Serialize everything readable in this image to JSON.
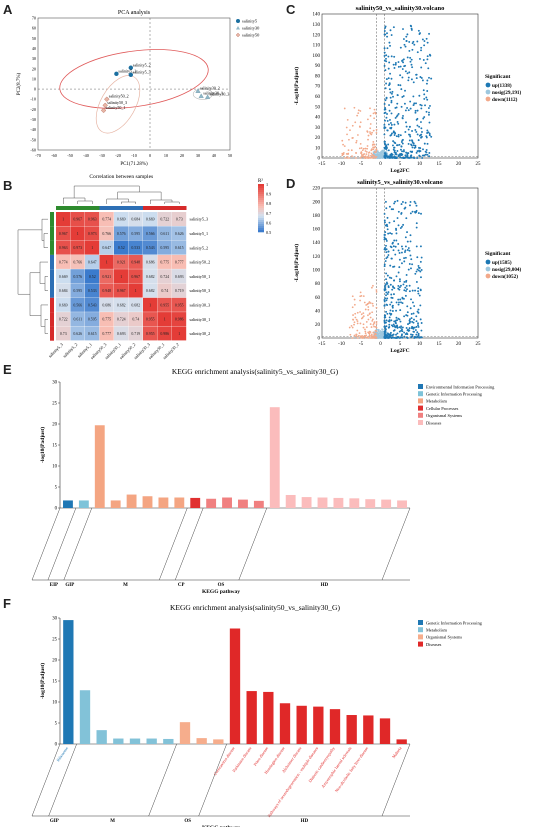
{
  "panel_labels": {
    "A": "A",
    "B": "B",
    "C": "C",
    "D": "D",
    "E": "E",
    "F": "F"
  },
  "colors": {
    "s5": "#1b6fa0",
    "s30": "#8fb7c7",
    "s50": "#e7b6a6",
    "vup": "#1d78b4",
    "vnosig": "#9dc7de",
    "vdown": "#f2a98a",
    "k_eip": "#1f77b4",
    "k_gip": "#7ec3d9",
    "k_met": "#f4a582",
    "k_cp": "#e03030",
    "k_os": "#f08080",
    "k_hd": "#fbbcbc",
    "f_gip": "#1f78b4",
    "f_met": "#82c2d8",
    "f_os": "#f6ad8c",
    "f_hd": "#e02828",
    "hm_hi": "#e84a40",
    "hm_lo": "#3a7fc8"
  },
  "chart_data": [
    {
      "id": "pca",
      "type": "scatter",
      "title": "PCA analysis",
      "xlabel": "PC1(71.28%)",
      "ylabel": "PC2(8.7%)",
      "xlim": [
        -70,
        50
      ],
      "ylim": [
        -60,
        70
      ],
      "xticks": [
        -70,
        -60,
        -50,
        -40,
        -30,
        -20,
        -10,
        0,
        10,
        20,
        30,
        40,
        50
      ],
      "yticks": [
        -60,
        -50,
        -40,
        -30,
        -20,
        -10,
        0,
        10,
        20,
        30,
        40,
        50,
        60,
        70
      ],
      "legend": [
        "salinity5",
        "salinity30",
        "salinity50"
      ],
      "points": [
        {
          "label": "salinity5_2",
          "x": -12,
          "y": 21,
          "group": "salinity5"
        },
        {
          "label": "salinity5_1",
          "x": -21,
          "y": 15,
          "group": "salinity5"
        },
        {
          "label": "salinity5_3",
          "x": -12,
          "y": 14,
          "group": "salinity5"
        },
        {
          "label": "salinity30_2",
          "x": 30,
          "y": -2,
          "group": "salinity30"
        },
        {
          "label": "salinity30_1",
          "x": 32,
          "y": -7,
          "group": "salinity30"
        },
        {
          "label": "salinity30_3",
          "x": 36,
          "y": -8,
          "group": "salinity30"
        },
        {
          "label": "salinity50_2",
          "x": -27,
          "y": -10,
          "group": "salinity50"
        },
        {
          "label": "salinity50_3",
          "x": -28,
          "y": -16,
          "group": "salinity50"
        },
        {
          "label": "salinity50_1",
          "x": -29,
          "y": -21,
          "group": "salinity50"
        }
      ]
    },
    {
      "id": "heatmap",
      "type": "heatmap",
      "title": "Correlation between samples",
      "legend_title": "R²",
      "legend_ticks": [
        "1",
        "0.9",
        "0.8",
        "0.7",
        "0.6",
        "0.5"
      ],
      "rows": [
        "salinity5_3",
        "salinity5_1",
        "salinity5_2",
        "salinity50_2",
        "salinity50_1",
        "salinity50_3",
        "salinity30_3",
        "salinity30_1",
        "salinity30_2"
      ],
      "cols": [
        "salinity5_3",
        "salinity5_2",
        "salinity5_1",
        "salinity50_3",
        "salinity50_1",
        "salinity50_2",
        "salinity30_3",
        "salinity30_1",
        "salinity30_2"
      ],
      "values": [
        [
          "1",
          "0.967",
          "0.963",
          "0.774",
          "0.669",
          "0.684",
          "0.669",
          "0.722",
          "0.73"
        ],
        [
          "0.967",
          "1",
          "0.973",
          "0.766",
          "0.576",
          "0.595",
          "0.566",
          "0.611",
          "0.626"
        ],
        [
          "0.963",
          "0.973",
          "1",
          "0.647",
          "0.52",
          "0.533",
          "0.543",
          "0.595",
          "0.615"
        ],
        [
          "0.774",
          "0.766",
          "0.647",
          "1",
          "0.921",
          "0.948",
          "0.686",
          "0.775",
          "0.777"
        ],
        [
          "0.669",
          "0.576",
          "0.52",
          "0.921",
          "1",
          "0.967",
          "0.682",
          "0.724",
          "0.693"
        ],
        [
          "0.684",
          "0.595",
          "0.533",
          "0.948",
          "0.967",
          "1",
          "0.682",
          "0.74",
          "0.719"
        ],
        [
          "0.669",
          "0.566",
          "0.543",
          "0.686",
          "0.682",
          "0.682",
          "1",
          "0.955",
          "0.955"
        ],
        [
          "0.722",
          "0.611",
          "0.595",
          "0.775",
          "0.724",
          "0.74",
          "0.955",
          "1",
          "0.986"
        ],
        [
          "0.73",
          "0.626",
          "0.615",
          "0.777",
          "0.693",
          "0.719",
          "0.955",
          "0.986",
          "1"
        ]
      ]
    },
    {
      "id": "volcanoC",
      "type": "scatter",
      "title": "salinity50_vs_salinity30.volcano",
      "xlabel": "Log2FC",
      "ylabel": "-Log10(Padjust)",
      "xlim": [
        -15,
        25
      ],
      "ylim": [
        0,
        140
      ],
      "xticks": [
        -15,
        -10,
        -5,
        0,
        5,
        10,
        15,
        20,
        25
      ],
      "yticks": [
        0,
        10,
        20,
        30,
        40,
        50,
        60,
        70,
        80,
        90,
        100,
        110,
        120,
        130,
        140
      ],
      "legend_title": "Significant",
      "legend": [
        "up(1338)",
        "nosig(29,191)",
        "down(1112)"
      ]
    },
    {
      "id": "volcanoD",
      "type": "scatter",
      "title": "salinity5_vs_salinity30.volcano",
      "xlabel": "Log2FC",
      "ylabel": "-Log10(Padjust)",
      "xlim": [
        -15,
        25
      ],
      "ylim": [
        0,
        220
      ],
      "xticks": [
        -15,
        -10,
        -5,
        0,
        5,
        10,
        15,
        20,
        25
      ],
      "yticks": [
        0,
        20,
        40,
        60,
        80,
        100,
        120,
        140,
        160,
        180,
        200,
        220
      ],
      "legend_title": "Significant",
      "legend": [
        "up(1585)",
        "nosig(29,004)",
        "down(1052)"
      ]
    },
    {
      "id": "keggE",
      "type": "bar",
      "title": "KEGG enrichment analysis(salinity5_vs_salinity30_G)",
      "xlabel": "KEGG pathway",
      "ylabel": "-log10(Padjust)",
      "ylim": [
        0,
        30
      ],
      "yticks": [
        0,
        5,
        10,
        15,
        20,
        25,
        30
      ],
      "legend": [
        "Environmental Information Processing",
        "Genetic Information Processing",
        "Metabolism",
        "Cellular Processes",
        "Organismal Systems",
        "Diseases"
      ],
      "groups": [
        "EIP",
        "GIP",
        "M",
        "CP",
        "OS",
        "HD"
      ],
      "values": [
        1.8,
        1.8,
        19.7,
        1.8,
        3.2,
        2.8,
        2.5,
        2.5,
        2.4,
        2.2,
        2.5,
        2.0,
        1.7,
        24.0,
        3.1,
        2.6,
        2.5,
        2.4,
        2.3,
        2.1,
        2.0,
        1.8
      ],
      "bar_groups": [
        "EIP",
        "GIP",
        "M",
        "M",
        "M",
        "M",
        "M",
        "M",
        "CP",
        "OS",
        "OS",
        "OS",
        "OS",
        "HD",
        "HD",
        "HD",
        "HD",
        "HD",
        "HD",
        "HD",
        "HD",
        "HD"
      ]
    },
    {
      "id": "keggF",
      "type": "bar",
      "title": "KEGG enrichment analysis(salinity50_vs_salinity30_G)",
      "xlabel": "KEGG pathway",
      "ylabel": "-log10(Padjust)",
      "ylim": [
        0,
        30
      ],
      "yticks": [
        0,
        5,
        10,
        15,
        20,
        25,
        30
      ],
      "legend": [
        "Genetic Information Processing",
        "Metabolism",
        "Organismal Systems",
        "Diseases"
      ],
      "groups": [
        "GIP",
        "M",
        "OS",
        "HD"
      ],
      "values": [
        29.5,
        12.8,
        3.3,
        1.3,
        1.3,
        1.3,
        1.2,
        5.2,
        1.4,
        1.1,
        27.5,
        12.6,
        12.4,
        9.7,
        9.1,
        8.9,
        8.3,
        6.9,
        6.8,
        6.1,
        1.1
      ],
      "bar_groups": [
        "GIP",
        "M",
        "M",
        "M",
        "M",
        "M",
        "M",
        "OS",
        "OS",
        "OS",
        "HD",
        "HD",
        "HD",
        "HD",
        "HD",
        "HD",
        "HD",
        "HD",
        "HD",
        "HD",
        "HD"
      ],
      "tick_labels": [
        "Ribosome",
        "",
        "",
        "",
        "",
        "",
        "",
        "",
        "",
        "",
        "Coronavirus disease",
        "Parkinson disease",
        "Prion disease",
        "Huntington disease",
        "Alzheimer disease",
        "Pathways of neurodegeneration - multiple diseases",
        "Diabetic cardiomyopathy",
        "Amyotrophic lateral sclerosis",
        "Non-alcoholic fatty liver disease",
        "",
        "Malaria"
      ]
    }
  ]
}
